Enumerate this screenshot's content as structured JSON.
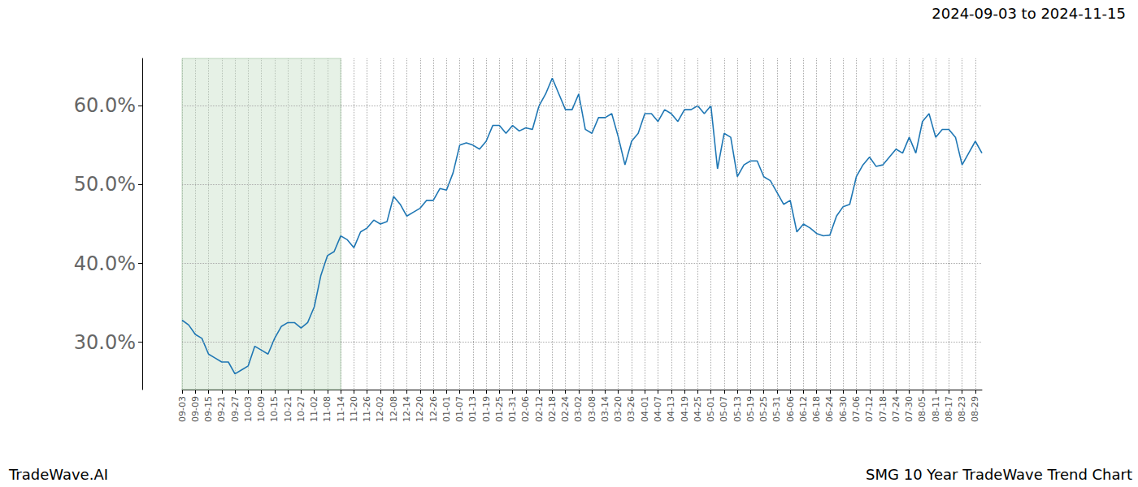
{
  "chart_data": {
    "type": "line",
    "title": "SMG 10 Year TradeWave Trend Chart",
    "subtitle": "2024-09-03 to 2024-11-15",
    "annotations": [
      "TradeWave.AI"
    ],
    "color": "#1f77b4",
    "grid": true,
    "categories": [
      "09-03",
      null,
      "09-09",
      null,
      "09-15",
      null,
      "09-21",
      null,
      "09-27",
      null,
      "10-03",
      null,
      "10-09",
      null,
      "10-15",
      null,
      "10-21",
      null,
      "10-27",
      null,
      "11-02",
      null,
      "11-08",
      null,
      "11-14",
      null,
      "11-20",
      null,
      "11-26",
      null,
      "12-02",
      null,
      "12-08",
      null,
      "12-14",
      null,
      "12-20",
      null,
      "12-26",
      null,
      "01-01",
      null,
      "01-07",
      null,
      "01-13",
      null,
      "01-19",
      null,
      "01-25",
      null,
      "01-31",
      null,
      "02-06",
      null,
      "02-12",
      null,
      "02-18",
      null,
      "02-24",
      null,
      "03-02",
      null,
      "03-08",
      null,
      "03-14",
      null,
      "03-20",
      null,
      "03-26",
      null,
      "04-01",
      null,
      "04-07",
      null,
      "04-13",
      null,
      "04-19",
      null,
      "04-25",
      null,
      "05-01",
      null,
      "05-07",
      null,
      "05-13",
      null,
      "05-19",
      null,
      "05-25",
      null,
      "05-31",
      null,
      "06-06",
      null,
      "06-12",
      null,
      "06-18",
      null,
      "06-24",
      null,
      "06-30",
      null,
      "07-06",
      null,
      "07-12",
      null,
      "07-18",
      null,
      "07-24",
      null,
      "07-30",
      null,
      "08-05",
      null,
      "08-11",
      null,
      "08-17",
      null,
      "08-23",
      null,
      "08-29",
      null
    ],
    "values": [
      32.8,
      32.2,
      31.0,
      30.5,
      28.5,
      28.0,
      27.5,
      27.5,
      26.0,
      26.5,
      27.0,
      29.5,
      29.0,
      28.5,
      30.5,
      32.0,
      32.5,
      32.5,
      31.8,
      32.5,
      34.5,
      38.5,
      41.0,
      41.5,
      43.5,
      43.0,
      42.0,
      44.0,
      44.5,
      45.5,
      45.0,
      45.3,
      48.5,
      47.5,
      46.0,
      46.5,
      47.0,
      48.0,
      48.0,
      49.5,
      49.3,
      51.5,
      55.0,
      55.3,
      55.0,
      54.5,
      55.5,
      57.5,
      57.5,
      56.5,
      57.5,
      56.8,
      57.2,
      57.0,
      60.0,
      61.5,
      63.5,
      61.5,
      59.5,
      59.5,
      61.5,
      57.0,
      56.5,
      58.5,
      58.5,
      59.0,
      56.0,
      52.5,
      55.5,
      56.5,
      59.0,
      59.0,
      58.0,
      59.5,
      59.0,
      58.0,
      59.5,
      59.5,
      60.0,
      59.0,
      60.0,
      52.0,
      56.5,
      56.0,
      51.0,
      52.5,
      53.0,
      53.0,
      51.0,
      50.5,
      49.0,
      47.5,
      48.0,
      44.0,
      45.0,
      44.5,
      43.8,
      43.5,
      43.6,
      46.0,
      47.2,
      47.5,
      51.0,
      52.5,
      53.5,
      52.3,
      52.5,
      53.5,
      54.5,
      54.0,
      56.0,
      54.0,
      58.0,
      59.0,
      56.0,
      57.0,
      57.0,
      56.0,
      52.5,
      54.0,
      55.5,
      54.0
    ],
    "ylim": [
      24,
      66
    ],
    "yticks": [
      {
        "value": 30,
        "label": "30.0%"
      },
      {
        "value": 40,
        "label": "40.0%"
      },
      {
        "value": 50,
        "label": "50.0%"
      },
      {
        "value": 60,
        "label": "60.0%"
      }
    ]
  }
}
